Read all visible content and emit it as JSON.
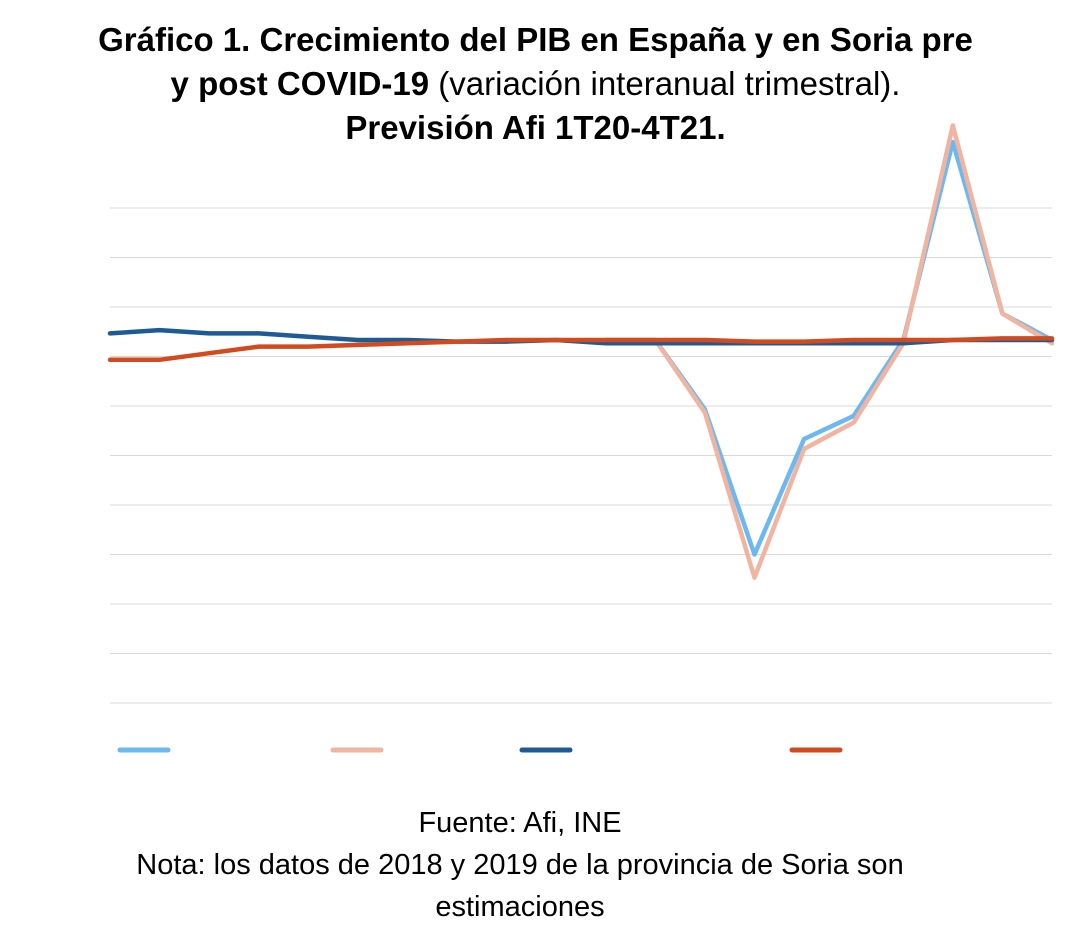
{
  "title": {
    "line1": "Gráfico 1. Crecimiento del PIB en España y en Soria pre",
    "line2_bold": "y post COVID-19",
    "line2_normal": " (variación interanual trimestral).",
    "line3": "Previsión Afi 1T20-4T21."
  },
  "footer": {
    "source": "Fuente: Afi, INE",
    "note_line1": "Nota: los datos de 2018 y 2019 de la provincia de Soria son",
    "note_line2": "estimaciones"
  },
  "chart_data": {
    "type": "line",
    "x": [
      1,
      2,
      3,
      4,
      5,
      6,
      7,
      8,
      9,
      10,
      11,
      12,
      13,
      14,
      15,
      16,
      17,
      18,
      19,
      20
    ],
    "ylim": [
      -11,
      4
    ],
    "grid": true,
    "legend_position": "bottom",
    "series": [
      {
        "color": "#6cb8f0",
        "values": [
          null,
          null,
          null,
          null,
          null,
          null,
          null,
          null,
          null,
          null,
          0.0,
          0.0,
          -2.1,
          -6.5,
          -3.0,
          -2.3,
          0.0,
          6.0,
          0.8,
          0.0
        ]
      },
      {
        "color": "#f0b4a0",
        "values": [
          null,
          null,
          null,
          null,
          null,
          null,
          null,
          null,
          null,
          null,
          0.0,
          0.0,
          -2.2,
          -7.2,
          -3.3,
          -2.5,
          -0.1,
          6.5,
          0.8,
          -0.1
        ]
      },
      {
        "color": "#1d5b96",
        "values": [
          0.2,
          0.3,
          0.2,
          0.2,
          0.1,
          0.0,
          0.0,
          -0.05,
          -0.05,
          0.0,
          -0.1,
          -0.1,
          -0.1,
          -0.1,
          -0.1,
          -0.1,
          -0.1,
          0.0,
          0.0,
          0.0
        ]
      },
      {
        "color": "#d24a1e",
        "values": [
          -0.6,
          -0.6,
          -0.4,
          -0.2,
          -0.2,
          -0.15,
          -0.1,
          -0.05,
          0.0,
          0.0,
          0.0,
          0.0,
          0.0,
          -0.05,
          -0.05,
          0.0,
          0.0,
          0.0,
          0.05,
          0.05
        ]
      }
    ]
  }
}
